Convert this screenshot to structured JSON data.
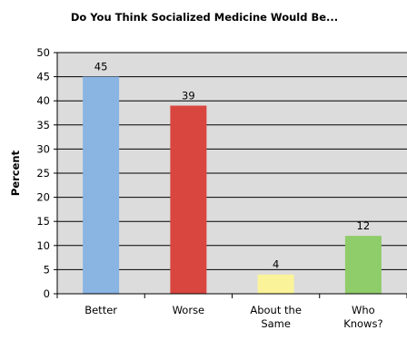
{
  "chart_data": {
    "type": "bar",
    "title": "Do You Think Socialized Medicine Would Be...",
    "xlabel": "",
    "ylabel": "Percent",
    "categories": [
      [
        "Better"
      ],
      [
        "Worse"
      ],
      [
        "About the",
        "Same"
      ],
      [
        "Who",
        "Knows?"
      ]
    ],
    "values": [
      45,
      39,
      4,
      12
    ],
    "colors": [
      "#8ab4e2",
      "#d9463f",
      "#faf39a",
      "#8fcc6a"
    ],
    "plot_background": "#dcdcdc",
    "ylim": [
      0,
      50
    ],
    "yticks": [
      0,
      5,
      10,
      15,
      20,
      25,
      30,
      35,
      40,
      45,
      50
    ],
    "grid": true,
    "legend": "none"
  }
}
